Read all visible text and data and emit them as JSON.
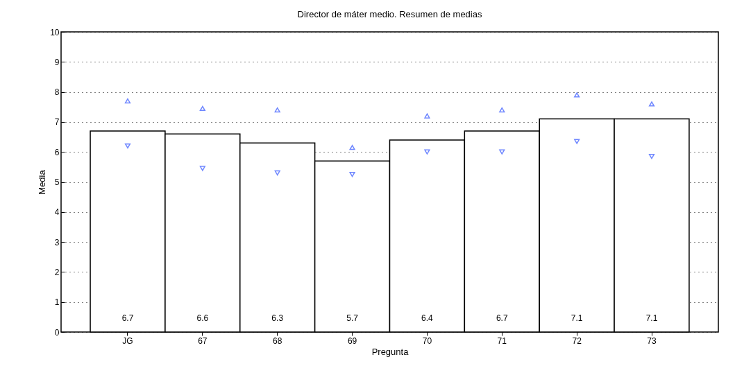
{
  "chart_data": {
    "type": "bar",
    "title": "Director de máter medio. Resumen de medias",
    "xlabel": "Pregunta",
    "ylabel": "Media",
    "categories": [
      "JG",
      "67",
      "68",
      "69",
      "70",
      "71",
      "72",
      "73"
    ],
    "series": [
      {
        "color": "#ffffff",
        "values": [
          6.7,
          6.6,
          6.3,
          5.7,
          6.4,
          6.7,
          7.1,
          7.1
        ],
        "value_labels": [
          "6.7",
          "6.6",
          "6.3",
          "5.7",
          "6.4",
          "6.7",
          "7.1",
          "7.1"
        ]
      },
      {
        "type": "scatter",
        "color": "#3355ff",
        "marker": "triangle",
        "x": [
          "JG",
          "67",
          "68",
          "69",
          "70",
          "71",
          "72",
          "73"
        ],
        "values": [
          7.7,
          7.45,
          7.4,
          6.15,
          7.2,
          7.4,
          7.9,
          7.6
        ]
      },
      {
        "type": "scatter",
        "color": "#3355ff",
        "marker": "triangle-down",
        "x": [
          "JG",
          "67",
          "68",
          "69",
          "70",
          "71",
          "72",
          "73"
        ],
        "values": [
          6.2,
          5.45,
          5.3,
          5.25,
          6.0,
          6.0,
          6.35,
          5.85
        ]
      }
    ],
    "ylim": [
      0,
      10
    ],
    "yticks": [
      0,
      1,
      2,
      3,
      4,
      5,
      6,
      7,
      8,
      9,
      10
    ],
    "grid": "y"
  }
}
